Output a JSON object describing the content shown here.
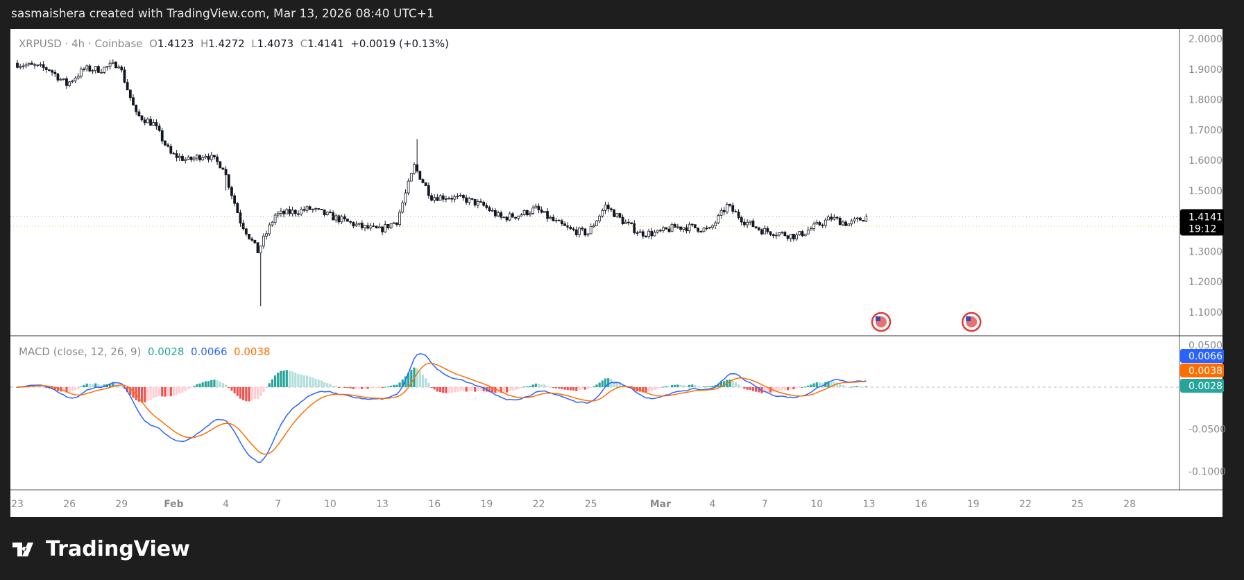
{
  "credit": "sasmaishera created with TradingView.com, Mar 13, 2026 08:40 UTC+1",
  "legend": {
    "symbol": "XRPUSD · 4h · Coinbase",
    "o_label": "O",
    "o": "1.4123",
    "h_label": "H",
    "h": "1.4272",
    "l_label": "L",
    "l": "1.4073",
    "c_label": "C",
    "c": "1.4141",
    "change": "+0.0019 (+0.13%)"
  },
  "macd_legend": {
    "title": "MACD (close, 12, 26, 9)",
    "hist": "0.0028",
    "macd": "0.0066",
    "signal": "0.0038"
  },
  "logo": "TradingView",
  "colors": {
    "up": "#26a69a",
    "down": "#ef5350",
    "macd": "#2962ff",
    "signal": "#ff6d00",
    "hist_up": "#26a69a",
    "hist_down": "#ef5350"
  },
  "chart_data": {
    "type": "candlestick",
    "interval": "4h",
    "price_axis": {
      "ticks": [
        "2.0000",
        "1.9000",
        "1.8000",
        "1.7000",
        "1.6000",
        "1.5000",
        "1.3000",
        "1.2000",
        "1.1000"
      ],
      "range": [
        1.05,
        2.03
      ]
    },
    "last_price": "1.4141",
    "countdown": "19:12",
    "macd_axis": {
      "ticks": [
        "0.0500",
        "-0.0500",
        "-0.1000"
      ],
      "range": [
        -0.115,
        0.06
      ]
    },
    "macd_last": {
      "macd": "0.0066",
      "signal": "0.0038",
      "hist": "0.0028"
    },
    "x_labels": [
      {
        "t": "23",
        "day": 0
      },
      {
        "t": "26",
        "day": 3
      },
      {
        "t": "29",
        "day": 6
      },
      {
        "t": "Feb",
        "day": 9
      },
      {
        "t": "4",
        "day": 12
      },
      {
        "t": "7",
        "day": 15
      },
      {
        "t": "10",
        "day": 18
      },
      {
        "t": "13",
        "day": 21
      },
      {
        "t": "16",
        "day": 24
      },
      {
        "t": "19",
        "day": 27
      },
      {
        "t": "22",
        "day": 30
      },
      {
        "t": "25",
        "day": 33
      },
      {
        "t": "Mar",
        "day": 37
      },
      {
        "t": "4",
        "day": 40
      },
      {
        "t": "7",
        "day": 43
      },
      {
        "t": "10",
        "day": 46
      },
      {
        "t": "13",
        "day": 49
      },
      {
        "t": "16",
        "day": 52
      },
      {
        "t": "19",
        "day": 55
      },
      {
        "t": "22",
        "day": 58
      },
      {
        "t": "25",
        "day": 61
      },
      {
        "t": "28",
        "day": 64
      }
    ],
    "daily_close": [
      1.92,
      1.91,
      1.9,
      1.85,
      1.9,
      1.9,
      1.92,
      1.75,
      1.72,
      1.62,
      1.6,
      1.62,
      1.58,
      1.4,
      1.3,
      1.42,
      1.43,
      1.44,
      1.42,
      1.4,
      1.38,
      1.37,
      1.4,
      1.58,
      1.48,
      1.48,
      1.47,
      1.45,
      1.41,
      1.42,
      1.44,
      1.4,
      1.37,
      1.36,
      1.45,
      1.4,
      1.36,
      1.36,
      1.38,
      1.38,
      1.37,
      1.45,
      1.4,
      1.37,
      1.36,
      1.35,
      1.38,
      1.41,
      1.39,
      1.4141
    ],
    "extremes": [
      {
        "day": 14,
        "low": 1.12
      },
      {
        "day": 23,
        "high": 1.67
      },
      {
        "day": 12,
        "low": 1.5
      }
    ],
    "events": [
      {
        "day": 49.7
      },
      {
        "day": 54.9
      }
    ]
  }
}
